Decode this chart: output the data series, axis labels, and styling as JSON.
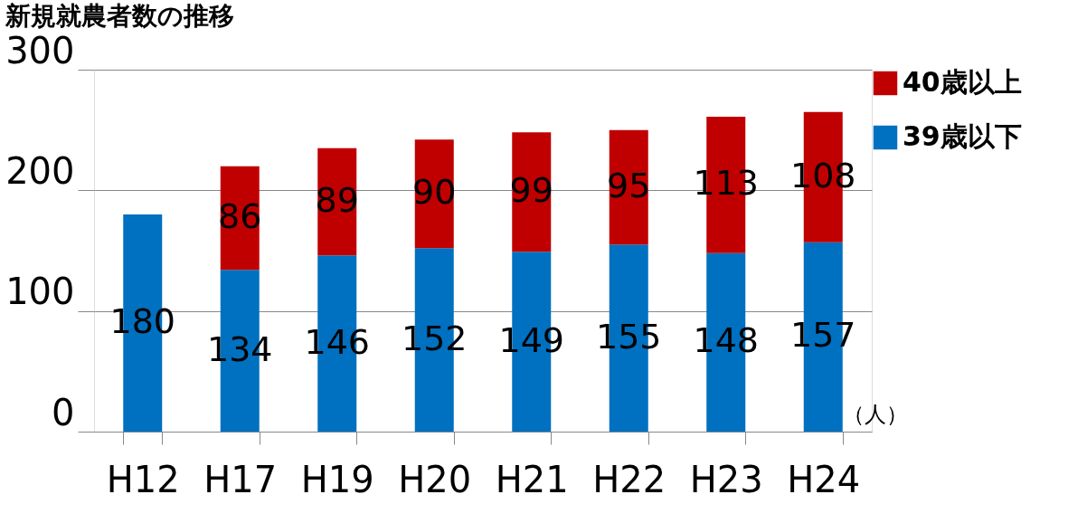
{
  "chart_data": {
    "type": "bar",
    "title": "新規就農者数の推移",
    "ylabel": "（人）",
    "categories": [
      "H12",
      "H17",
      "H19",
      "H20",
      "H21",
      "H22",
      "H23",
      "H24"
    ],
    "series": [
      {
        "name": "39歳以下",
        "color": "#0070c0",
        "values": [
          180,
          134,
          146,
          152,
          149,
          155,
          148,
          157
        ]
      },
      {
        "name": "40歳以上",
        "color": "#c00000",
        "values": [
          null,
          86,
          89,
          90,
          99,
          95,
          113,
          108
        ]
      }
    ],
    "stacked": true,
    "ylim": [
      0,
      300
    ],
    "yticks": [
      0,
      100,
      200,
      300
    ],
    "grid": "y",
    "legend": "right",
    "data_labels": true
  }
}
